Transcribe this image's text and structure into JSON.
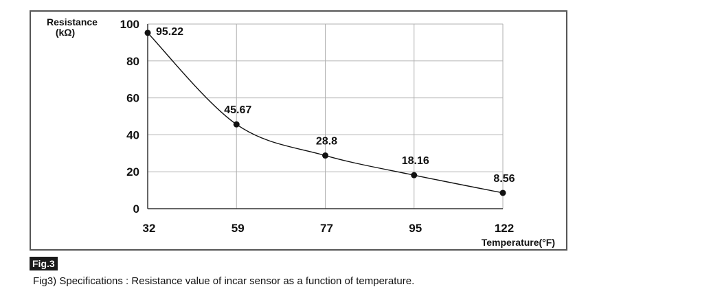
{
  "figure": {
    "tag": "Fig.3",
    "caption": "Fig3) Specifications : Resistance value of incar sensor as a function of temperature."
  },
  "chart_data": {
    "type": "line",
    "ylabel_line1": "Resistance",
    "ylabel_line2": "(kΩ)",
    "xlabel": "Temperature(°F)",
    "categories": [
      "32",
      "59",
      "77",
      "95",
      "122"
    ],
    "values": [
      95.22,
      45.67,
      28.8,
      18.16,
      8.56
    ],
    "data_labels": [
      "95.22",
      "45.67",
      "28.8",
      "18.16",
      "8.56"
    ],
    "yticks": [
      0,
      20,
      40,
      60,
      80,
      100
    ],
    "ylim": [
      0,
      100
    ],
    "grid": true,
    "colors": {
      "line": "#111111",
      "grid": "#b0b0b0",
      "axis": "#333333"
    }
  }
}
